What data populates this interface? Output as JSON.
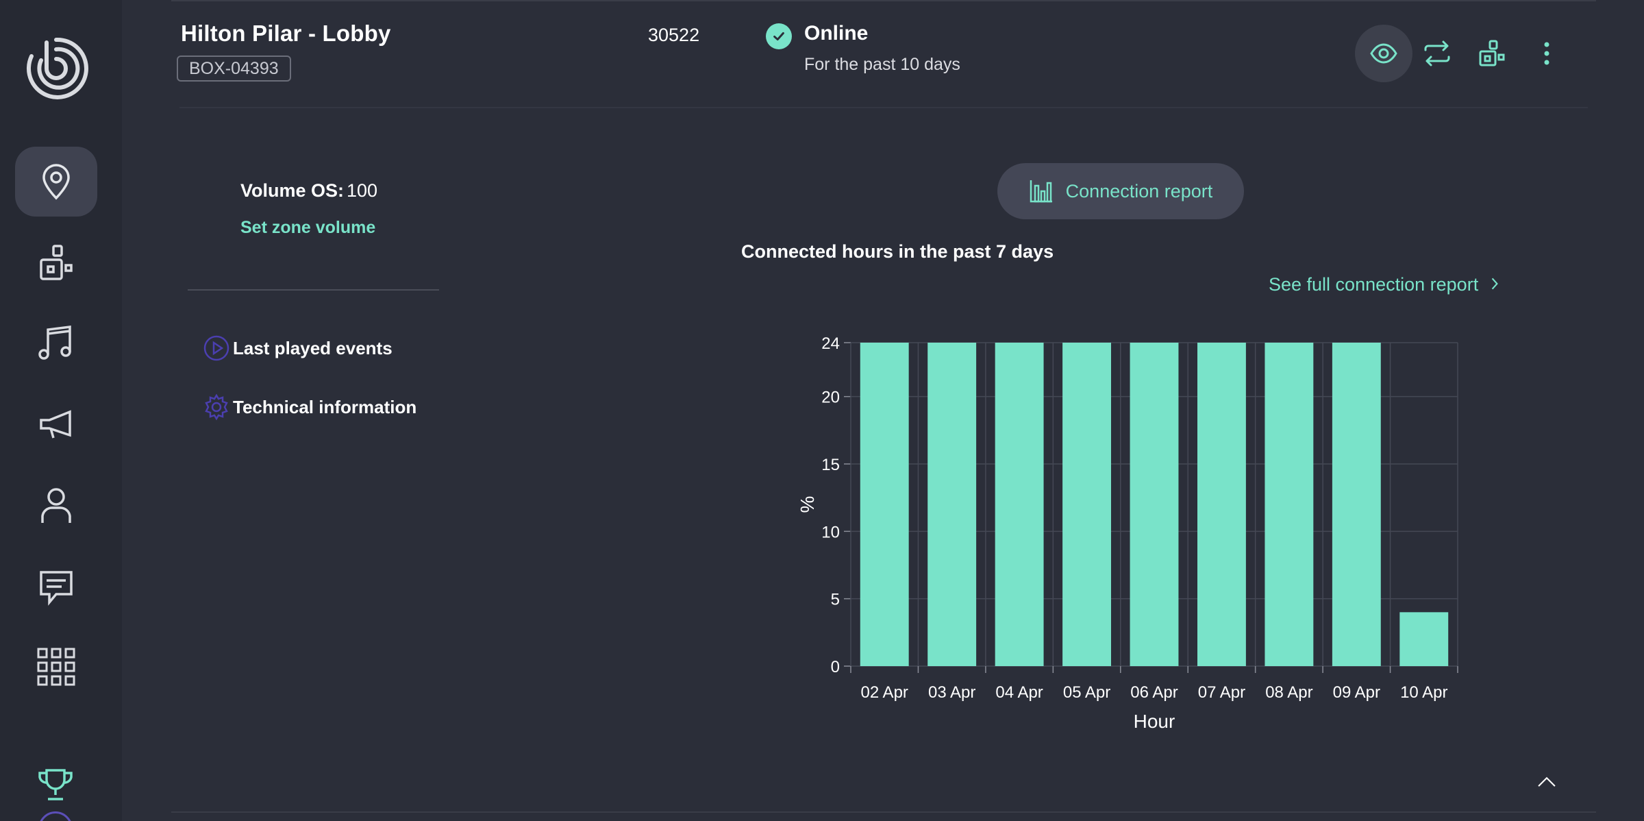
{
  "header": {
    "device_name": "Hilton Pilar - Lobby",
    "box_id": "BOX-04393",
    "device_number": "30522",
    "status": "Online",
    "status_detail": "For the past 10 days"
  },
  "volume": {
    "label": "Volume OS:",
    "value": "100",
    "set_zone_label": "Set zone volume"
  },
  "side_links": {
    "events": "Last played events",
    "technical": "Technical information"
  },
  "connection": {
    "button_label": "Connection report",
    "chart_title": "Connected hours in the past 7 days",
    "full_report_label": "See full connection report"
  },
  "icons": {
    "sidebar": [
      "location-pin-icon",
      "devices-icon",
      "music-icon",
      "megaphone-icon",
      "user-icon",
      "chat-icon",
      "apps-grid-icon",
      "trophy-icon"
    ],
    "header": [
      "eye-icon",
      "swap-icon",
      "devices-icon",
      "more-icon"
    ]
  },
  "colors": {
    "accent": "#79e3c9",
    "background": "#2b2e39",
    "sidebar": "#262933"
  },
  "chart_data": {
    "type": "bar",
    "categories": [
      "02 Apr",
      "03 Apr",
      "04 Apr",
      "05 Apr",
      "06 Apr",
      "07 Apr",
      "08 Apr",
      "09 Apr",
      "10 Apr"
    ],
    "values": [
      24,
      24,
      24,
      24,
      24,
      24,
      24,
      24,
      4
    ],
    "xlabel": "Hour",
    "ylabel": "%",
    "ylim": [
      0,
      24
    ],
    "yticks": [
      0,
      5,
      10,
      15,
      20,
      24
    ],
    "grid": true,
    "bar_color": "#79e3c9"
  }
}
